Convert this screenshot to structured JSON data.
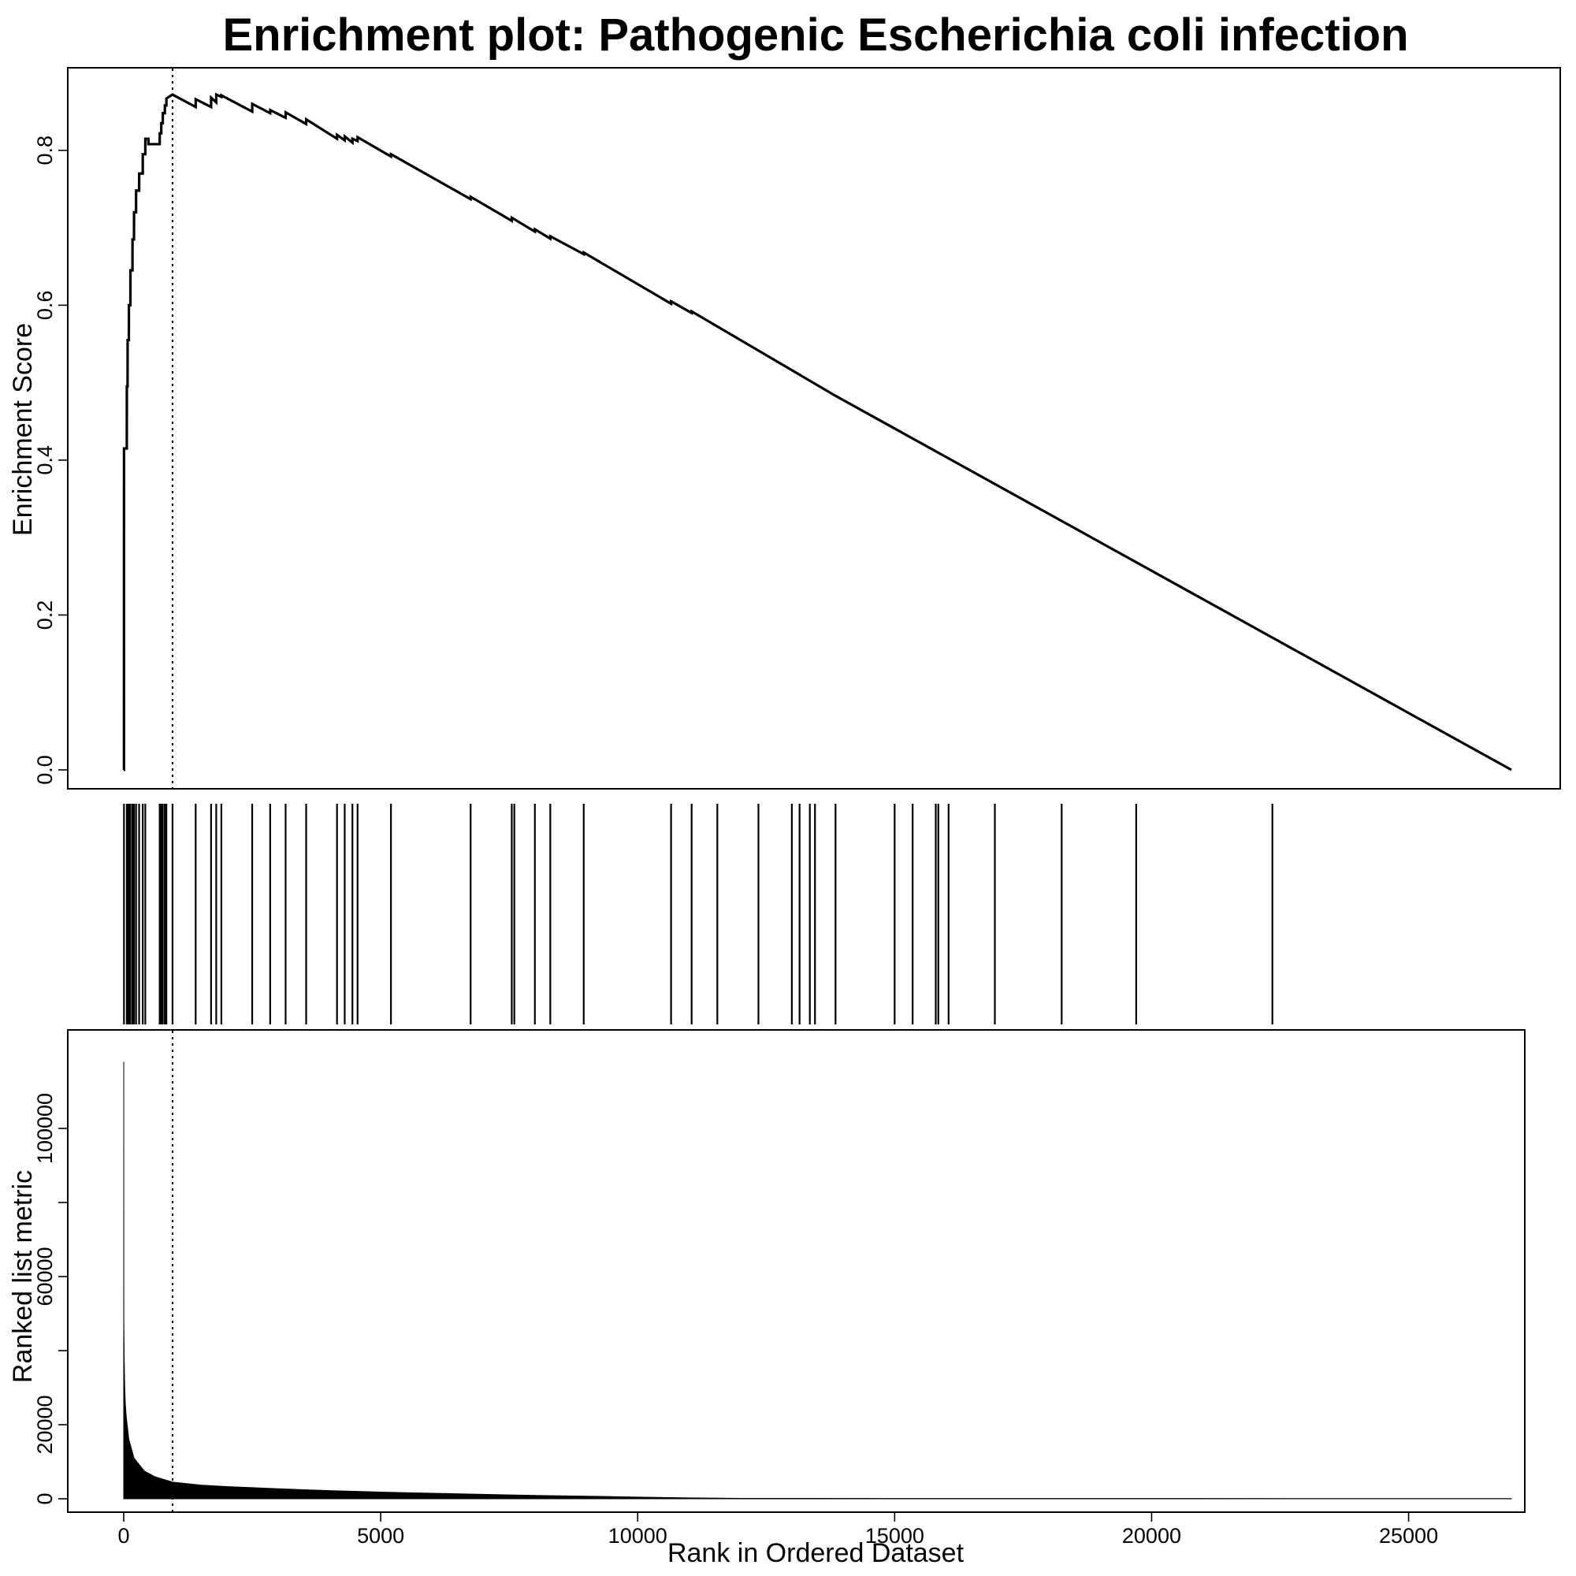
{
  "chart_data": {
    "type": "line",
    "title": "Enrichment plot: Pathogenic Escherichia coli infection",
    "xlabel": "Rank in Ordered Dataset",
    "xlim": [
      0,
      27000
    ],
    "x_ticks": [
      0,
      5000,
      10000,
      15000,
      20000,
      25000
    ],
    "x_tick_labels": [
      "0",
      "5000",
      "10000",
      "15000",
      "20000",
      "25000"
    ],
    "peak_rank": 950,
    "panels": {
      "enrichment": {
        "ylabel": "Enrichment Score",
        "ylim": [
          0,
          0.87
        ],
        "y_ticks": [
          0,
          0.2,
          0.4,
          0.6,
          0.8
        ],
        "y_tick_labels": [
          "0.0",
          "0.2",
          "0.4",
          "0.6",
          "0.8"
        ],
        "x": [
          0,
          1,
          5,
          6,
          60,
          61,
          75,
          76,
          100,
          101,
          130,
          131,
          170,
          171,
          200,
          201,
          240,
          241,
          300,
          301,
          370,
          371,
          420,
          421,
          480,
          481,
          700,
          701,
          730,
          731,
          760,
          761,
          800,
          801,
          830,
          831,
          950,
          1400,
          1401,
          1700,
          1701,
          1800,
          1801,
          1900,
          1901,
          2500,
          2501,
          2850,
          2851,
          3150,
          3151,
          3550,
          3551,
          4150,
          4151,
          4300,
          4301,
          4450,
          4451,
          4550,
          4551,
          5200,
          5201,
          6750,
          6751,
          7550,
          7551,
          8000,
          8001,
          8300,
          8301,
          8950,
          8951,
          10650,
          10651,
          11050,
          11051,
          13850,
          27000
        ],
        "y": [
          0.0,
          0.0,
          0.0,
          0.415,
          0.415,
          0.495,
          0.495,
          0.555,
          0.555,
          0.6,
          0.6,
          0.645,
          0.645,
          0.685,
          0.685,
          0.72,
          0.72,
          0.748,
          0.748,
          0.77,
          0.77,
          0.795,
          0.795,
          0.815,
          0.815,
          0.808,
          0.808,
          0.822,
          0.822,
          0.835,
          0.835,
          0.848,
          0.848,
          0.858,
          0.858,
          0.867,
          0.872,
          0.856,
          0.866,
          0.856,
          0.868,
          0.862,
          0.872,
          0.869,
          0.871,
          0.85,
          0.86,
          0.848,
          0.852,
          0.842,
          0.849,
          0.834,
          0.84,
          0.815,
          0.82,
          0.813,
          0.818,
          0.81,
          0.815,
          0.812,
          0.817,
          0.792,
          0.795,
          0.737,
          0.74,
          0.709,
          0.713,
          0.695,
          0.698,
          0.686,
          0.689,
          0.666,
          0.668,
          0.602,
          0.605,
          0.59,
          0.592,
          0.483,
          0.0
        ]
      },
      "hits": {
        "ranks": [
          5,
          60,
          75,
          100,
          130,
          170,
          200,
          240,
          300,
          370,
          420,
          700,
          730,
          760,
          800,
          830,
          950,
          1400,
          1700,
          1800,
          1900,
          2500,
          2850,
          3150,
          3550,
          4150,
          4300,
          4450,
          4550,
          5200,
          6750,
          7550,
          7600,
          8000,
          8300,
          8950,
          10650,
          11050,
          11550,
          12350,
          13000,
          13150,
          13350,
          13450,
          13850,
          15000,
          15350,
          15800,
          15850,
          16050,
          16950,
          18250,
          19700,
          22350
        ]
      },
      "metric": {
        "ylabel": "Ranked list metric",
        "ylim": [
          0,
          120000
        ],
        "y_ticks": [
          0,
          20000,
          60000,
          100000
        ],
        "y_tick_labels": [
          "0",
          "20000",
          "60000",
          "100000"
        ],
        "y_minor_ticks": [
          0,
          20000,
          40000,
          60000,
          80000,
          100000
        ],
        "x": [
          0,
          1,
          2,
          10,
          20,
          30,
          50,
          100,
          200,
          400,
          600,
          950,
          1500,
          2000,
          3000,
          4000,
          5000,
          6000,
          7000,
          8000,
          9000,
          10000,
          11000,
          12000,
          27000
        ],
        "values": [
          0,
          118000,
          48000,
          37000,
          30000,
          26000,
          22000,
          16000,
          11000,
          7500,
          6000,
          4500,
          3700,
          3300,
          2700,
          2200,
          1800,
          1500,
          1200,
          900,
          700,
          450,
          250,
          100,
          50
        ]
      }
    }
  }
}
